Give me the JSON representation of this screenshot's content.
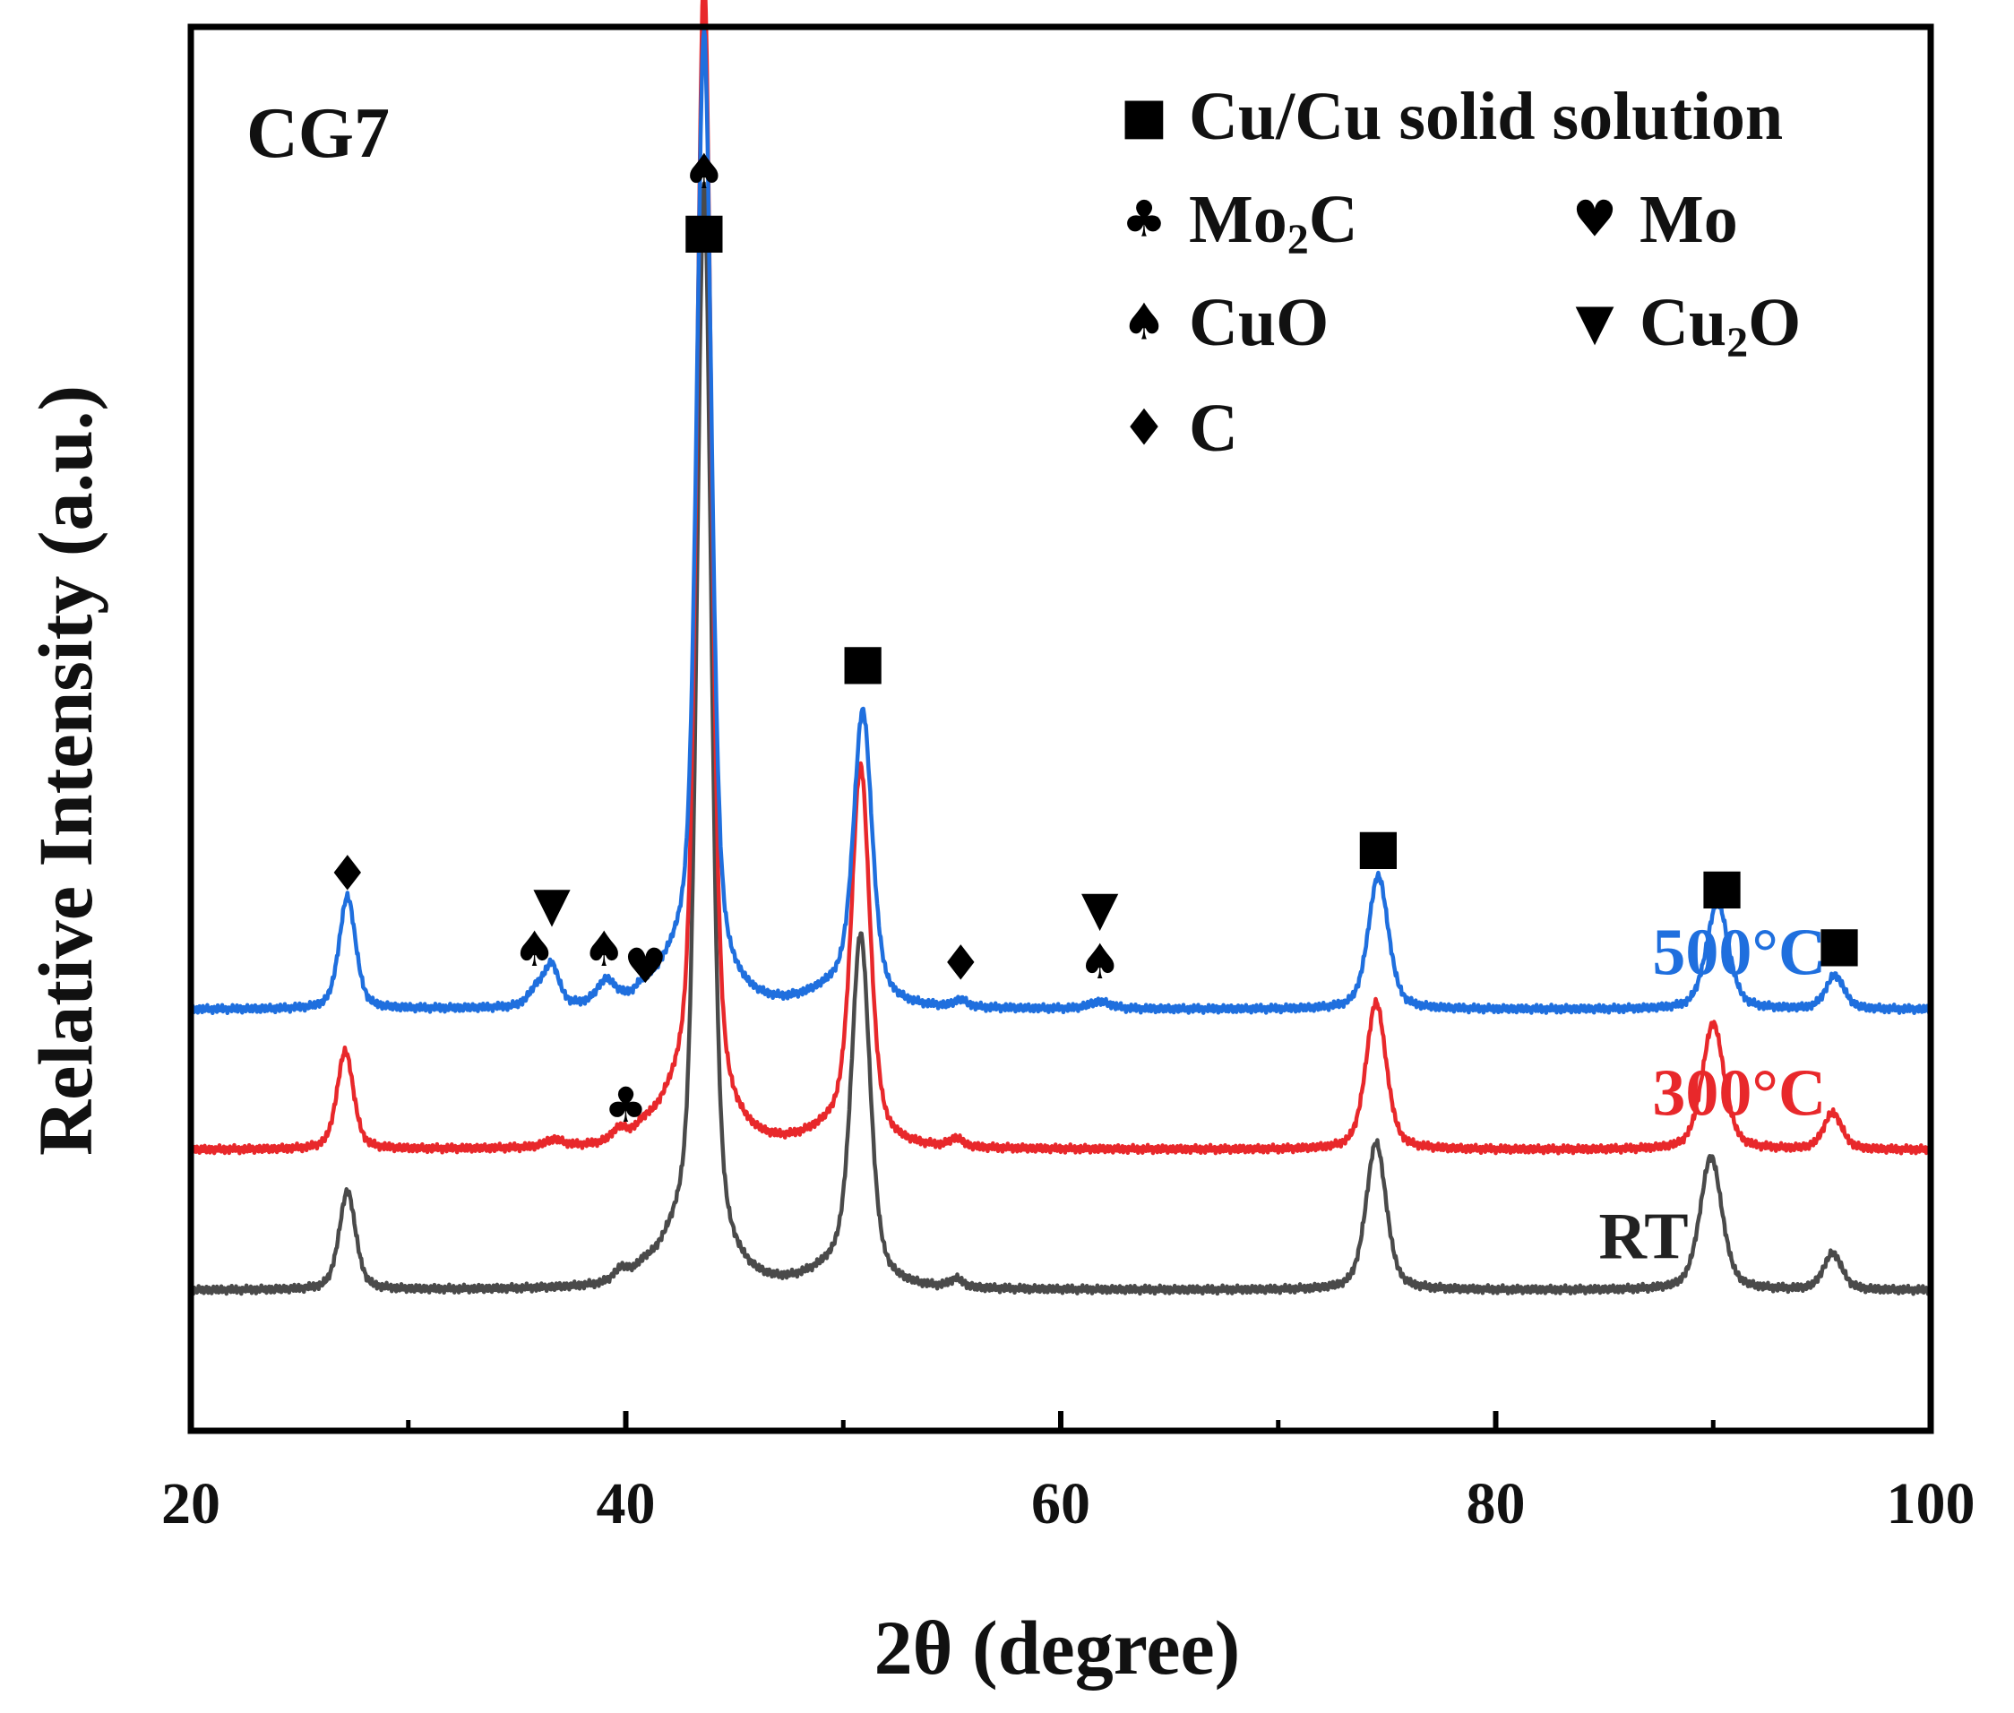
{
  "chart_data": {
    "type": "line",
    "title": "CG7",
    "xlabel": "2θ (degree)",
    "ylabel": "Relative Intensity (a.u.)",
    "xlim": [
      20,
      100
    ],
    "ylim": [
      0,
      100
    ],
    "x_ticks": [
      20,
      40,
      60,
      80,
      100
    ],
    "x_minor_ticks": [
      30,
      50,
      70,
      90
    ],
    "grid": false,
    "legend": {
      "position": "top-right",
      "entries": [
        {
          "symbol": "■",
          "label_parts": [
            "Cu/Cu solid solution"
          ]
        },
        {
          "symbol": "♣",
          "label_parts": [
            "Mo",
            "2",
            "C"
          ]
        },
        {
          "symbol": "♥",
          "label_parts": [
            "Mo"
          ]
        },
        {
          "symbol": "♠",
          "label_parts": [
            "CuO"
          ]
        },
        {
          "symbol": "▼",
          "label_parts": [
            "Cu",
            "2",
            "O"
          ]
        },
        {
          "symbol": "♦",
          "label_parts": [
            "C"
          ]
        }
      ]
    },
    "series": [
      {
        "name": "RT",
        "color": "#4a4a4a",
        "baseline": 10,
        "peaks": [
          [
            27.2,
            7.0,
            0.45
          ],
          [
            39.8,
            0.8,
            0.4
          ],
          [
            40.8,
            0.4,
            0.3
          ],
          [
            43.6,
            75.0,
            0.4
          ],
          [
            43.0,
            4.0,
            1.6
          ],
          [
            50.8,
            24.0,
            0.5
          ],
          [
            50.0,
            1.5,
            1.6
          ],
          [
            55.2,
            0.6,
            0.35
          ],
          [
            74.5,
            10.5,
            0.55
          ],
          [
            89.9,
            9.5,
            0.6
          ],
          [
            95.5,
            2.6,
            0.5
          ]
        ]
      },
      {
        "name": "300°C",
        "color": "#e8282b",
        "baseline": 20,
        "peaks": [
          [
            27.1,
            7.0,
            0.45
          ],
          [
            36.7,
            0.5,
            0.5
          ],
          [
            39.7,
            0.8,
            0.4
          ],
          [
            40.8,
            0.4,
            0.3
          ],
          [
            43.6,
            80.0,
            0.4
          ],
          [
            43.0,
            4.0,
            1.6
          ],
          [
            50.8,
            26.0,
            0.5
          ],
          [
            50.0,
            1.5,
            1.6
          ],
          [
            55.2,
            0.6,
            0.35
          ],
          [
            74.5,
            10.5,
            0.55
          ],
          [
            90.0,
            9.0,
            0.6
          ],
          [
            95.5,
            2.6,
            0.5
          ]
        ]
      },
      {
        "name": "500°C",
        "color": "#1f6fde",
        "baseline": 30,
        "peaks": [
          [
            27.2,
            8.0,
            0.45
          ],
          [
            35.9,
            1.2,
            0.45
          ],
          [
            36.6,
            2.8,
            0.4
          ],
          [
            39.1,
            1.6,
            0.5
          ],
          [
            40.8,
            0.4,
            0.3
          ],
          [
            43.6,
            66.0,
            0.4
          ],
          [
            43.0,
            4.0,
            1.6
          ],
          [
            50.9,
            20.0,
            0.5
          ],
          [
            50.0,
            1.5,
            1.6
          ],
          [
            55.4,
            0.5,
            0.35
          ],
          [
            61.8,
            0.5,
            0.6
          ],
          [
            74.6,
            9.5,
            0.55
          ],
          [
            90.2,
            7.6,
            0.6
          ],
          [
            95.6,
            2.4,
            0.5
          ]
        ]
      }
    ],
    "series_labels": [
      {
        "text": "500°C",
        "x": 91.2,
        "y": 32.5,
        "color": "#1f6fde"
      },
      {
        "text": "300°C",
        "x": 91.2,
        "y": 22.5,
        "color": "#e8282b"
      },
      {
        "text": "RT",
        "x": 86.8,
        "y": 12.3,
        "color": "#222222"
      }
    ],
    "annotations": [
      {
        "symbol": "♦",
        "x": 27.2,
        "y": 39.7
      },
      {
        "symbol": "♠",
        "x": 35.8,
        "y": 34.3
      },
      {
        "symbol": "▼",
        "x": 36.6,
        "y": 37.5
      },
      {
        "symbol": "♠",
        "x": 39.0,
        "y": 34.3
      },
      {
        "symbol": "♥",
        "x": 40.9,
        "y": 33.1
      },
      {
        "symbol": "♣",
        "x": 40.0,
        "y": 23.2
      },
      {
        "symbol": "♠",
        "x": 43.6,
        "y": 89.7
      },
      {
        "symbol": "■",
        "x": 43.6,
        "y": 85.5
      },
      {
        "symbol": "■",
        "x": 50.9,
        "y": 54.8
      },
      {
        "symbol": "♦",
        "x": 55.4,
        "y": 33.3
      },
      {
        "symbol": "▼",
        "x": 61.8,
        "y": 37.2
      },
      {
        "symbol": "♠",
        "x": 61.8,
        "y": 33.4
      },
      {
        "symbol": "■",
        "x": 74.6,
        "y": 41.6
      },
      {
        "symbol": "■",
        "x": 90.4,
        "y": 38.8
      },
      {
        "symbol": "■",
        "x": 95.8,
        "y": 34.7
      }
    ]
  }
}
